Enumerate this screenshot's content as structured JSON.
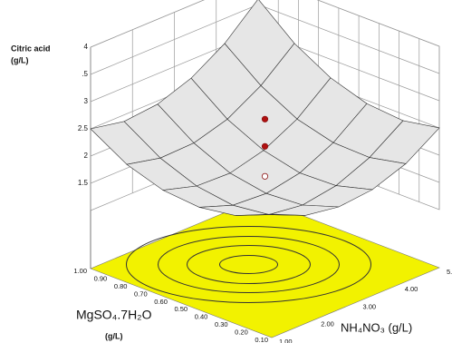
{
  "chart_data": {
    "type": "surface",
    "zlabel": "Citric acid",
    "zunit": "(g/L)",
    "xlabel": "MgSO₄.7H₂O",
    "xunit": "(g/L)",
    "ylabel": "NH₄NO₃ (g/L)",
    "x": [
      1.0,
      0.82,
      0.64,
      0.46,
      0.28,
      0.1
    ],
    "y": [
      1,
      1.8,
      2.6,
      3.4,
      4.2,
      5
    ],
    "z": [
      [
        2.5,
        2.38,
        2.44,
        2.66,
        3.04,
        3.6
      ],
      [
        2.1,
        1.96,
        1.98,
        2.16,
        2.52,
        3.04
      ],
      [
        1.88,
        1.7,
        1.68,
        1.84,
        2.16,
        2.66
      ],
      [
        1.82,
        1.6,
        1.56,
        1.68,
        1.98,
        2.44
      ],
      [
        1.92,
        1.68,
        1.6,
        1.7,
        1.96,
        2.38
      ],
      [
        2.2,
        1.92,
        1.82,
        1.88,
        2.1,
        2.5
      ]
    ],
    "points": {
      "x": [
        0.55,
        0.55,
        0.55,
        0.55,
        0.55,
        0.55,
        0.55
      ],
      "y": [
        3,
        3,
        3,
        3,
        3,
        3,
        3
      ],
      "z": [
        2.67,
        2.17,
        1.62,
        1.45,
        1.32,
        1.18,
        1.07
      ],
      "colors": [
        "#b01010",
        "#b01010",
        "#ffffff",
        "#ffffff",
        "#ffffff",
        "#ffffff",
        "#ffffff"
      ]
    },
    "surface_color": "#e6e6e6",
    "mesh_color": "#303030",
    "floor_color": "#f2f200",
    "xlim": [
      1.0,
      0.1
    ],
    "ylim": [
      1,
      5
    ],
    "zlim": [
      1,
      4
    ],
    "xticks": [
      {
        "value": 1.0,
        "label": "1.00"
      },
      {
        "value": 0.9,
        "label": "0.90"
      },
      {
        "value": 0.8,
        "label": "0.80"
      },
      {
        "value": 0.7,
        "label": "0.70"
      },
      {
        "value": 0.6,
        "label": "0.60"
      },
      {
        "value": 0.5,
        "label": "0.50"
      },
      {
        "value": 0.4,
        "label": "0.40"
      },
      {
        "value": 0.3,
        "label": "0.30"
      },
      {
        "value": 0.2,
        "label": "0.20"
      },
      {
        "value": 0.1,
        "label": "0.10"
      }
    ],
    "yticks": [
      {
        "value": 1,
        "label": "1.00"
      },
      {
        "value": 2,
        "label": "2.00"
      },
      {
        "value": 3,
        "label": "3.00"
      },
      {
        "value": 4,
        "label": "4.00"
      },
      {
        "value": 5,
        "label": "5."
      }
    ],
    "zticks": [
      1.5,
      2,
      2.5,
      3,
      {
        "value": 3.5,
        "label": ".5"
      },
      4
    ],
    "grid": true
  }
}
